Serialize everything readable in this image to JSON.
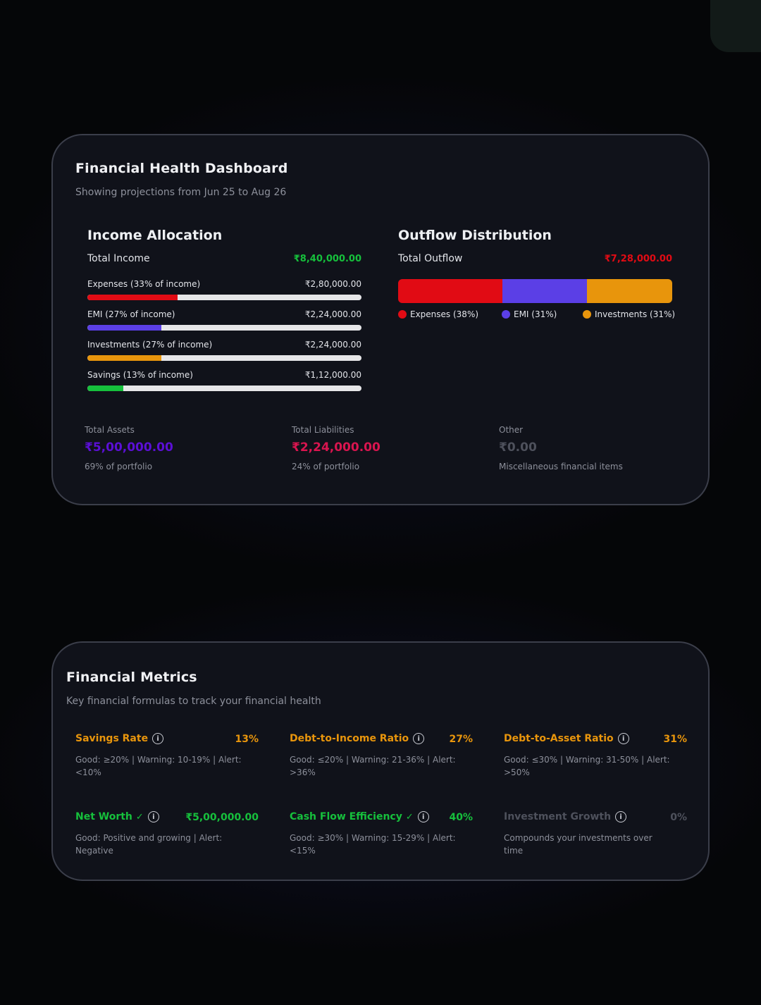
{
  "dashboard": {
    "title": "Financial Health Dashboard",
    "subtitle": "Showing projections from Jun 25 to Aug 26",
    "income": {
      "title": "Income Allocation",
      "total_label": "Total Income",
      "total_value": "₹8,40,000.00",
      "items": [
        {
          "label": "Expenses (33% of income)",
          "value": "₹2,80,000.00",
          "fraction": 0.33,
          "color": "#e10b14"
        },
        {
          "label": "EMI (27% of income)",
          "value": "₹2,24,000.00",
          "fraction": 0.27,
          "color": "#5b3fe6"
        },
        {
          "label": "Investments (27% of income)",
          "value": "₹2,24,000.00",
          "fraction": 0.27,
          "color": "#e8950c"
        },
        {
          "label": "Savings (13% of income)",
          "value": "₹1,12,000.00",
          "fraction": 0.13,
          "color": "#16c03c"
        }
      ]
    },
    "outflow": {
      "title": "Outflow Distribution",
      "total_label": "Total Outflow",
      "total_value": "₹7,28,000.00",
      "segments": [
        {
          "label": "Expenses (38%)",
          "fraction": 0.38,
          "color": "#e10b14"
        },
        {
          "label": "EMI (31%)",
          "fraction": 0.31,
          "color": "#5b3fe6"
        },
        {
          "label": "Investments (31%)",
          "fraction": 0.31,
          "color": "#e8950c"
        }
      ]
    },
    "stats": [
      {
        "label": "Total Assets",
        "value": "₹5,00,000.00",
        "note": "69% of portfolio",
        "color": "#5b0fd6"
      },
      {
        "label": "Total Liabilities",
        "value": "₹2,24,000.00",
        "note": "24% of portfolio",
        "color": "#d9154f"
      },
      {
        "label": "Other",
        "value": "₹0.00",
        "note": "Miscellaneous financial items",
        "color": "#4e515c"
      }
    ]
  },
  "metrics": {
    "title": "Financial Metrics",
    "subtitle": "Key financial formulas to track your financial health",
    "info_glyph": "i",
    "items": [
      {
        "title": "Savings Rate",
        "value": "13%",
        "desc": "Good: ≥20% | Warning: 10-19% | Alert: <10%",
        "color": "#e8950c",
        "check": ""
      },
      {
        "title": "Debt-to-Income Ratio",
        "value": "27%",
        "desc": "Good: ≤20% | Warning: 21-36% | Alert: >36%",
        "color": "#e8950c",
        "check": ""
      },
      {
        "title": "Debt-to-Asset Ratio",
        "value": "31%",
        "desc": "Good: ≤30% | Warning: 31-50% | Alert: >50%",
        "color": "#e8950c",
        "check": ""
      },
      {
        "title": "Net Worth",
        "value": "₹5,00,000.00",
        "desc": "Good: Positive and growing | Alert: Negative",
        "color": "#16c03c",
        "check": "✓"
      },
      {
        "title": "Cash Flow Efficiency",
        "value": "40%",
        "desc": "Good: ≥30% | Warning: 15-29% | Alert: <15%",
        "color": "#16c03c",
        "check": "✓"
      },
      {
        "title": "Investment Growth",
        "value": "0%",
        "desc": "Compounds your investments over time",
        "color": "#4e515c",
        "check": ""
      }
    ]
  }
}
